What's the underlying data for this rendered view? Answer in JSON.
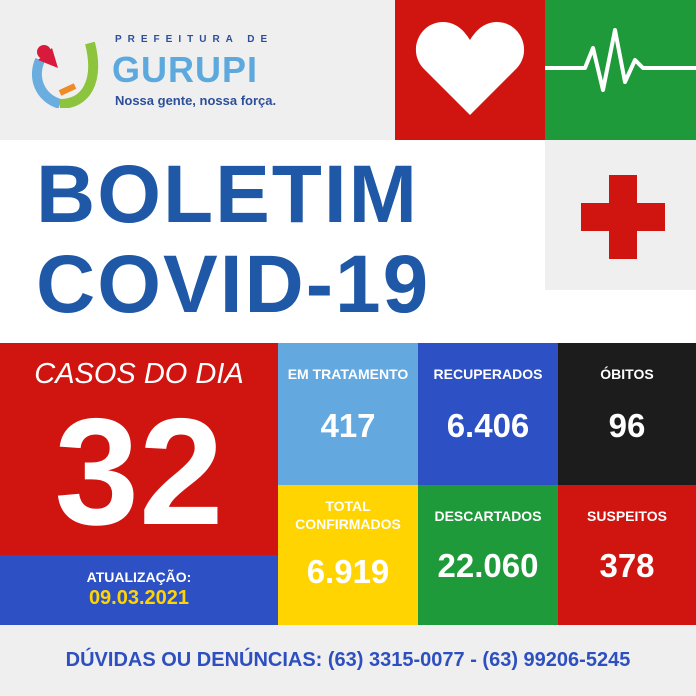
{
  "logo": {
    "top": "PREFEITURA DE",
    "name": "GURUPI",
    "slogan": "Nossa gente, nossa força."
  },
  "title": {
    "line1": "BOLETIM",
    "line2": "COVID-19"
  },
  "casos": {
    "label": "CASOS DO DIA",
    "value": "32"
  },
  "update": {
    "label": "ATUALIZAÇÃO:",
    "date": "09.03.2021"
  },
  "stats": [
    {
      "label": "EM TRATAMENTO",
      "value": "417",
      "color": "#64a8e0"
    },
    {
      "label": "RECUPERADOS",
      "value": "6.406",
      "color": "#2d51c4"
    },
    {
      "label": "ÓBITOS",
      "value": "96",
      "color": "#1c1c1c"
    },
    {
      "label": "TOTAL CONFIRMADOS",
      "value": "6.919",
      "color": "#ffd400"
    },
    {
      "label": "DESCARTADOS",
      "value": "22.060",
      "color": "#1f9a3a"
    },
    {
      "label": "SUSPEITOS",
      "value": "378",
      "color": "#d01410"
    }
  ],
  "footer": "DÚVIDAS OU DENÚNCIAS: (63) 3315-0077 - (63) 99206-5245",
  "icons": [
    "heart-icon",
    "heartbeat-icon",
    "medical-cross-icon"
  ]
}
